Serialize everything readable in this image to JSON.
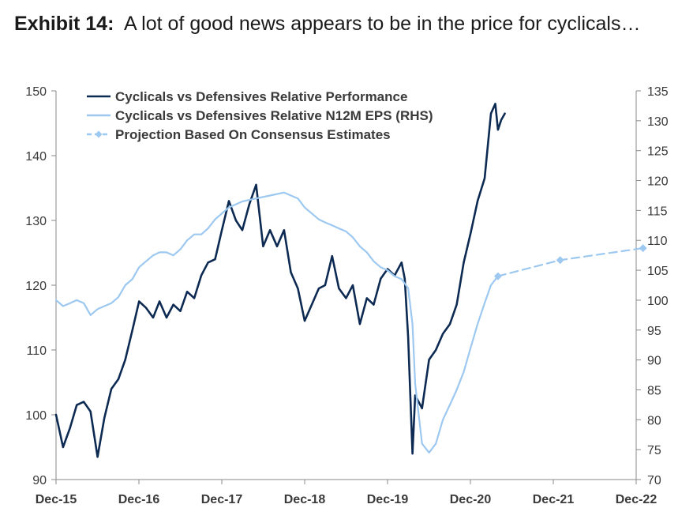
{
  "title": {
    "lead": "Exhibit 14:",
    "text": "A lot of good news appears to be in the price for cyclicals…"
  },
  "chart_data": {
    "type": "line",
    "x_ticks": [
      "Dec-15",
      "Dec-16",
      "Dec-17",
      "Dec-18",
      "Dec-19",
      "Dec-20",
      "Dec-21",
      "Dec-22"
    ],
    "y_left": {
      "ticks": [
        90,
        100,
        110,
        120,
        130,
        140,
        150
      ],
      "ylim": [
        90,
        150
      ]
    },
    "y_right": {
      "ticks": [
        70,
        75,
        80,
        85,
        90,
        95,
        100,
        105,
        110,
        115,
        120,
        125,
        130,
        135
      ],
      "ylim": [
        70,
        135
      ]
    },
    "legend_position": "top-left",
    "grid": false,
    "series": [
      {
        "name": "Cyclicals vs Defensives Relative Performance",
        "axis": "left",
        "color": "#0d2a52",
        "points": [
          [
            "2015-12-01",
            100.0
          ],
          [
            "2016-01-01",
            95.0
          ],
          [
            "2016-02-01",
            98.0
          ],
          [
            "2016-03-01",
            101.5
          ],
          [
            "2016-04-01",
            102.0
          ],
          [
            "2016-05-01",
            100.5
          ],
          [
            "2016-06-01",
            93.5
          ],
          [
            "2016-07-01",
            99.5
          ],
          [
            "2016-08-01",
            104.0
          ],
          [
            "2016-09-01",
            105.5
          ],
          [
            "2016-10-01",
            108.5
          ],
          [
            "2016-11-01",
            113.0
          ],
          [
            "2016-12-01",
            117.5
          ],
          [
            "2017-01-01",
            116.5
          ],
          [
            "2017-02-01",
            115.0
          ],
          [
            "2017-03-01",
            117.5
          ],
          [
            "2017-04-01",
            115.0
          ],
          [
            "2017-05-01",
            117.0
          ],
          [
            "2017-06-01",
            116.0
          ],
          [
            "2017-07-01",
            119.0
          ],
          [
            "2017-08-01",
            118.0
          ],
          [
            "2017-09-01",
            121.5
          ],
          [
            "2017-10-01",
            123.5
          ],
          [
            "2017-11-01",
            124.0
          ],
          [
            "2017-12-01",
            128.5
          ],
          [
            "2018-01-01",
            133.0
          ],
          [
            "2018-02-01",
            130.0
          ],
          [
            "2018-03-01",
            128.5
          ],
          [
            "2018-04-01",
            132.5
          ],
          [
            "2018-05-01",
            135.5
          ],
          [
            "2018-06-01",
            126.0
          ],
          [
            "2018-07-01",
            128.5
          ],
          [
            "2018-08-01",
            126.0
          ],
          [
            "2018-09-01",
            128.5
          ],
          [
            "2018-10-01",
            122.0
          ],
          [
            "2018-11-01",
            119.5
          ],
          [
            "2018-12-01",
            114.5
          ],
          [
            "2019-01-01",
            117.0
          ],
          [
            "2019-02-01",
            119.5
          ],
          [
            "2019-03-01",
            120.0
          ],
          [
            "2019-04-01",
            124.5
          ],
          [
            "2019-05-01",
            119.5
          ],
          [
            "2019-06-01",
            118.0
          ],
          [
            "2019-07-01",
            120.0
          ],
          [
            "2019-08-01",
            114.0
          ],
          [
            "2019-09-01",
            118.0
          ],
          [
            "2019-10-01",
            117.0
          ],
          [
            "2019-11-01",
            121.0
          ],
          [
            "2019-12-01",
            122.5
          ],
          [
            "2020-01-01",
            121.5
          ],
          [
            "2020-02-01",
            123.5
          ],
          [
            "2020-02-15",
            121.0
          ],
          [
            "2020-03-01",
            112.0
          ],
          [
            "2020-03-20",
            94.0
          ],
          [
            "2020-04-01",
            103.0
          ],
          [
            "2020-05-01",
            101.0
          ],
          [
            "2020-06-01",
            108.5
          ],
          [
            "2020-07-01",
            110.0
          ],
          [
            "2020-08-01",
            112.5
          ],
          [
            "2020-09-01",
            114.0
          ],
          [
            "2020-10-01",
            117.0
          ],
          [
            "2020-11-01",
            123.5
          ],
          [
            "2020-12-01",
            128.0
          ],
          [
            "2021-01-01",
            133.0
          ],
          [
            "2021-02-01",
            136.5
          ],
          [
            "2021-03-01",
            146.5
          ],
          [
            "2021-03-20",
            148.0
          ],
          [
            "2021-04-01",
            144.0
          ],
          [
            "2021-04-15",
            145.5
          ],
          [
            "2021-05-01",
            146.5
          ]
        ]
      },
      {
        "name": "Cyclicals vs Defensives Relative N12M EPS (RHS)",
        "axis": "right",
        "color": "#9dc8f0",
        "points": [
          [
            "2015-12-01",
            100.0
          ],
          [
            "2016-01-01",
            99.0
          ],
          [
            "2016-02-01",
            99.5
          ],
          [
            "2016-03-01",
            100.0
          ],
          [
            "2016-04-01",
            99.5
          ],
          [
            "2016-05-01",
            97.5
          ],
          [
            "2016-06-01",
            98.5
          ],
          [
            "2016-07-01",
            99.0
          ],
          [
            "2016-08-01",
            99.5
          ],
          [
            "2016-09-01",
            100.5
          ],
          [
            "2016-10-01",
            102.5
          ],
          [
            "2016-11-01",
            103.5
          ],
          [
            "2016-12-01",
            105.5
          ],
          [
            "2017-01-01",
            106.5
          ],
          [
            "2017-02-01",
            107.5
          ],
          [
            "2017-03-01",
            108.0
          ],
          [
            "2017-04-01",
            108.0
          ],
          [
            "2017-05-01",
            107.5
          ],
          [
            "2017-06-01",
            108.5
          ],
          [
            "2017-07-01",
            110.0
          ],
          [
            "2017-08-01",
            111.0
          ],
          [
            "2017-09-01",
            111.0
          ],
          [
            "2017-10-01",
            112.0
          ],
          [
            "2017-11-01",
            113.5
          ],
          [
            "2017-12-01",
            114.5
          ],
          [
            "2018-01-01",
            115.5
          ],
          [
            "2018-03-01",
            116.5
          ],
          [
            "2018-05-01",
            117.0
          ],
          [
            "2018-07-01",
            117.5
          ],
          [
            "2018-09-01",
            118.0
          ],
          [
            "2018-11-01",
            117.0
          ],
          [
            "2018-12-01",
            115.5
          ],
          [
            "2019-01-01",
            114.5
          ],
          [
            "2019-02-01",
            113.5
          ],
          [
            "2019-03-01",
            113.0
          ],
          [
            "2019-04-01",
            112.5
          ],
          [
            "2019-05-01",
            112.0
          ],
          [
            "2019-06-01",
            111.5
          ],
          [
            "2019-07-01",
            110.5
          ],
          [
            "2019-08-01",
            109.0
          ],
          [
            "2019-09-01",
            108.0
          ],
          [
            "2019-10-01",
            106.5
          ],
          [
            "2019-11-01",
            105.5
          ],
          [
            "2019-12-01",
            105.0
          ],
          [
            "2020-01-01",
            104.0
          ],
          [
            "2020-02-01",
            103.5
          ],
          [
            "2020-03-01",
            102.0
          ],
          [
            "2020-03-20",
            96.0
          ],
          [
            "2020-04-01",
            86.0
          ],
          [
            "2020-05-01",
            76.0
          ],
          [
            "2020-06-01",
            74.5
          ],
          [
            "2020-07-01",
            76.0
          ],
          [
            "2020-08-01",
            80.0
          ],
          [
            "2020-09-01",
            82.5
          ],
          [
            "2020-10-01",
            85.0
          ],
          [
            "2020-11-01",
            88.0
          ],
          [
            "2020-12-01",
            92.0
          ],
          [
            "2021-01-01",
            96.0
          ],
          [
            "2021-02-01",
            99.5
          ],
          [
            "2021-03-01",
            102.5
          ],
          [
            "2021-04-01",
            104.0
          ]
        ]
      },
      {
        "name": "Projection Based On Consensus Estimates",
        "axis": "right",
        "color": "#9dc8f0",
        "style": "dashed-diamond",
        "points": [
          [
            "2021-04-01",
            104.0
          ],
          [
            "2021-12-31",
            106.7
          ],
          [
            "2022-12-31",
            108.7
          ]
        ]
      }
    ]
  }
}
